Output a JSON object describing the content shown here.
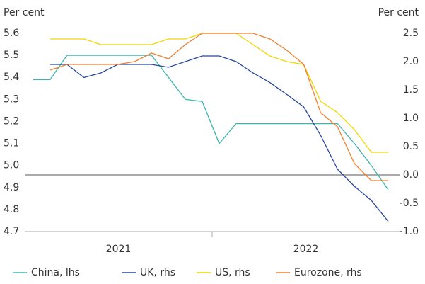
{
  "chart_data": {
    "type": "line",
    "y_label": "Per cent",
    "y2_label": "Per cent",
    "categories": [
      null,
      null,
      null,
      null,
      null,
      null,
      null,
      null,
      null,
      null,
      null,
      null,
      null,
      null,
      null,
      null,
      null,
      null,
      null,
      null,
      null,
      null
    ],
    "x_labels": [
      "2021",
      "2022"
    ],
    "ylim": [
      4.7,
      5.6
    ],
    "yticks": [
      4.7,
      4.8,
      4.9,
      {
        "value": 5,
        "label": "5.0"
      },
      5.1,
      5.2,
      5.3,
      5.4,
      5.5,
      5.6
    ],
    "y2lim": [
      -1,
      2.5
    ],
    "y2ticks": [
      {
        "value": -1,
        "label": "-1.0"
      },
      {
        "value": -0.5,
        "label": "-0.5"
      },
      {
        "value": 0,
        "label": "0.0"
      },
      {
        "value": 0.5,
        "label": "0.5"
      },
      {
        "value": 1,
        "label": "1.0"
      },
      {
        "value": 1.5,
        "label": "1.5"
      },
      {
        "value": 2,
        "label": "2.0"
      },
      {
        "value": 2.5,
        "label": "2.5"
      }
    ],
    "series": [
      {
        "name": "China, lhs",
        "color": "#3db5ad",
        "values": [
          5.39,
          5.39,
          5.5,
          5.5,
          5.5,
          5.5,
          5.5,
          5.5,
          5.4,
          5.3,
          5.29,
          5.1,
          5.19,
          5.19,
          5.19,
          5.19,
          5.19,
          5.19,
          5.19,
          5.1,
          5.0,
          4.89
        ]
      },
      {
        "name": "UK, rhs",
        "color": "#26479a",
        "axis": "y2",
        "values": [
          null,
          1.95,
          1.95,
          1.72,
          1.8,
          1.95,
          1.95,
          1.95,
          1.9,
          2.0,
          2.1,
          2.1,
          2.0,
          1.8,
          1.63,
          1.42,
          1.2,
          0.7,
          0.1,
          -0.2,
          -0.45,
          -0.82
        ]
      },
      {
        "name": "US, rhs",
        "color": "#f2d600",
        "axis": "y2",
        "values": [
          null,
          2.4,
          2.4,
          2.4,
          2.3,
          2.3,
          2.3,
          2.3,
          2.4,
          2.4,
          2.5,
          2.5,
          2.5,
          2.3,
          2.1,
          2.0,
          1.95,
          1.3,
          1.1,
          0.8,
          0.4,
          0.4
        ]
      },
      {
        "name": "Eurozone, rhs",
        "color": "#f07f30",
        "axis": "y2",
        "values": [
          null,
          1.85,
          1.95,
          1.95,
          1.95,
          1.95,
          2.0,
          2.15,
          2.05,
          2.3,
          2.5,
          2.5,
          2.5,
          2.5,
          2.4,
          2.2,
          1.95,
          1.1,
          0.85,
          0.2,
          -0.1,
          -0.1
        ]
      }
    ]
  }
}
